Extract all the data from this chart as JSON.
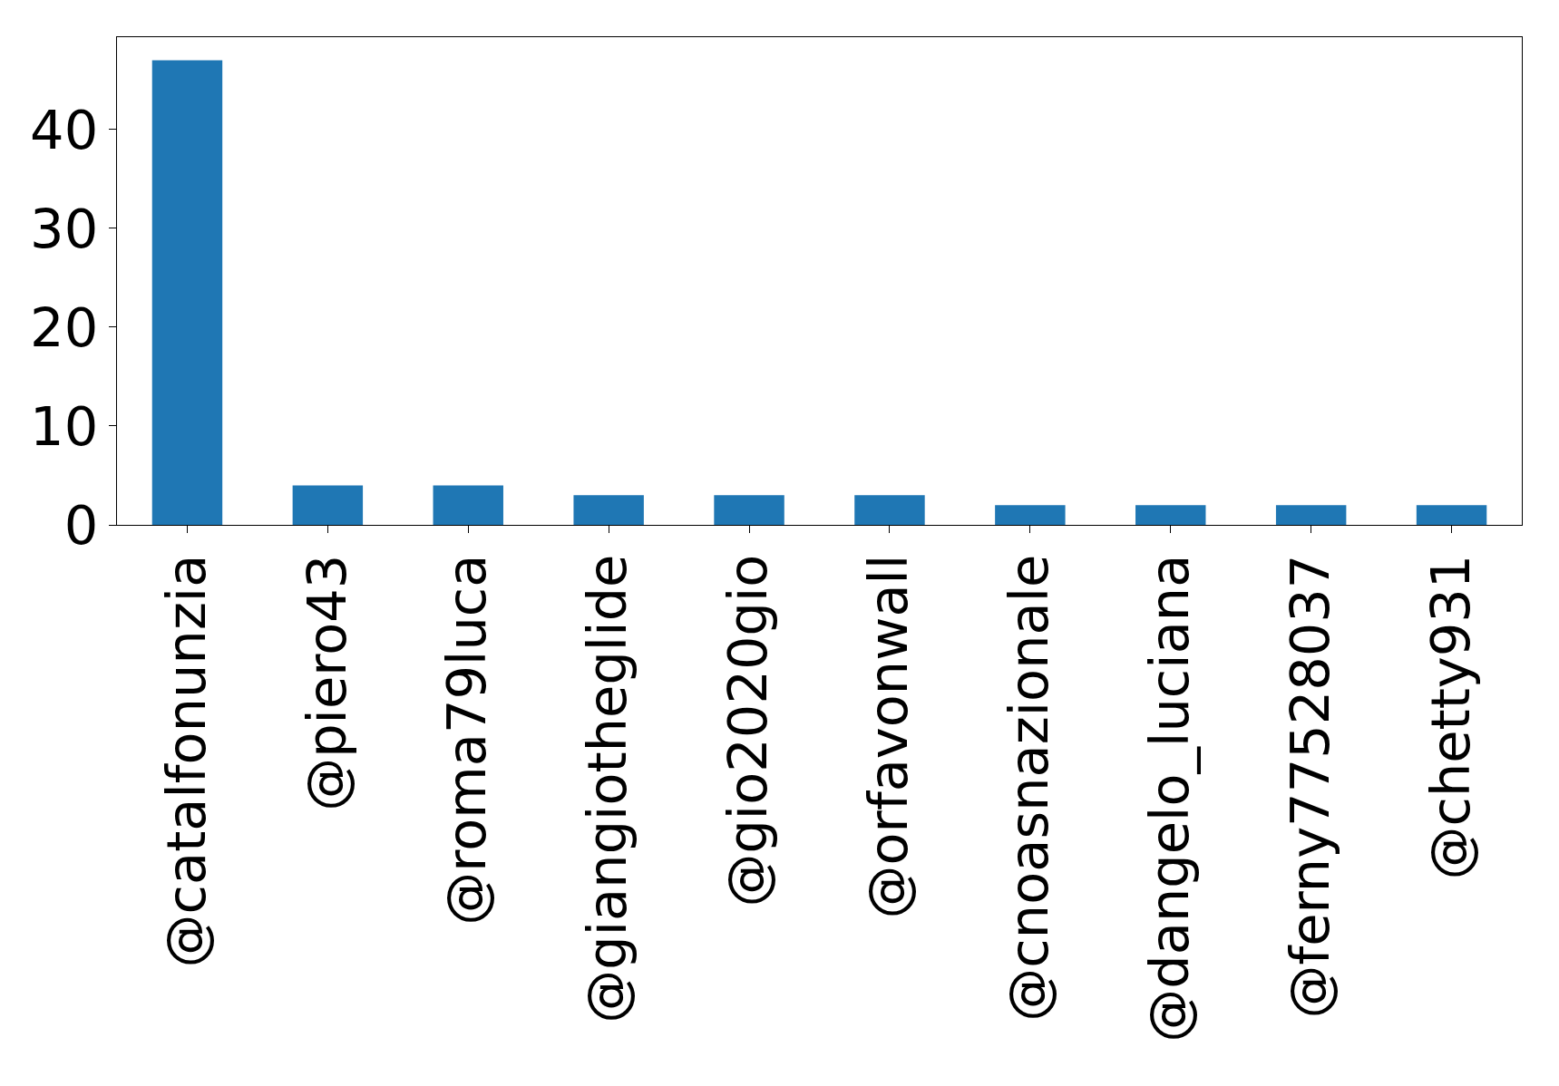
{
  "chart_data": {
    "type": "bar",
    "categories": [
      "@catalfonunzia",
      "@piero43",
      "@roma79luca",
      "@giangiotheglide",
      "@gio2020gio",
      "@orfavonwall",
      "@cnoasnazionale",
      "@dangelo_luciana",
      "@ferny77528037",
      "@chetty931"
    ],
    "values": [
      47,
      4,
      4,
      3,
      3,
      3,
      2,
      2,
      2,
      2
    ],
    "color": "#1f77b4",
    "ylim": [
      0,
      49.35
    ],
    "yticks": [
      0,
      10,
      20,
      30,
      40
    ]
  }
}
